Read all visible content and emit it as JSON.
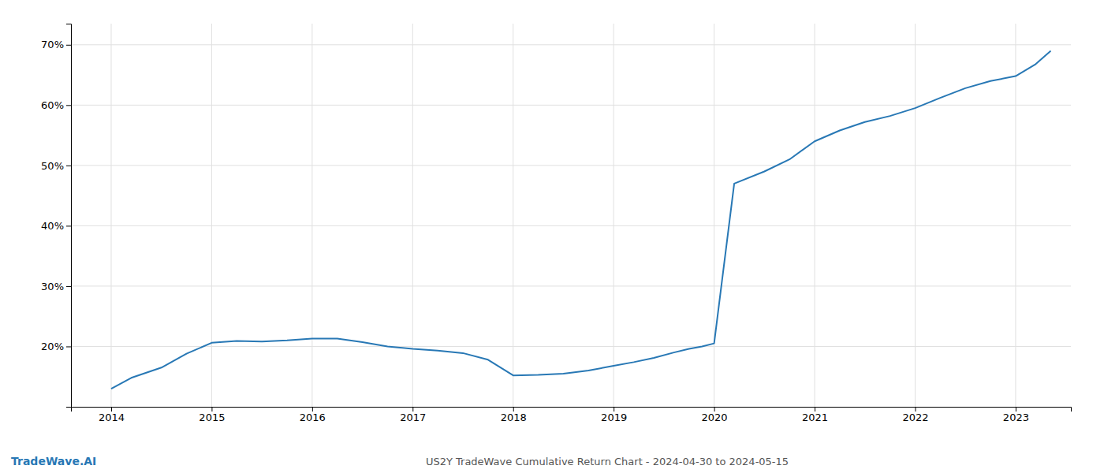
{
  "chart_data": {
    "type": "line",
    "title": "US2Y TradeWave Cumulative Return Chart - 2024-04-30 to 2024-05-15",
    "annotations": [
      "TradeWave.AI"
    ],
    "color": "#2878b5",
    "grid": true,
    "x": [
      2014.0,
      2014.2,
      2014.5,
      2014.75,
      2015.0,
      2015.25,
      2015.5,
      2015.75,
      2016.0,
      2016.25,
      2016.5,
      2016.75,
      2017.0,
      2017.25,
      2017.5,
      2017.75,
      2018.0,
      2018.25,
      2018.5,
      2018.75,
      2019.0,
      2019.2,
      2019.4,
      2019.6,
      2019.75,
      2019.88,
      2020.0,
      2020.2,
      2020.5,
      2020.75,
      2021.0,
      2021.25,
      2021.5,
      2021.75,
      2022.0,
      2022.25,
      2022.5,
      2022.75,
      2023.0,
      2023.2,
      2023.35
    ],
    "values": [
      0.13,
      0.148,
      0.165,
      0.188,
      0.206,
      0.209,
      0.208,
      0.21,
      0.213,
      0.213,
      0.207,
      0.2,
      0.196,
      0.193,
      0.189,
      0.178,
      0.152,
      0.153,
      0.155,
      0.16,
      0.168,
      0.174,
      0.181,
      0.19,
      0.196,
      0.2,
      0.205,
      0.47,
      0.49,
      0.51,
      0.54,
      0.558,
      0.572,
      0.582,
      0.595,
      0.612,
      0.628,
      0.64,
      0.648,
      0.668,
      0.69
    ],
    "xlim": [
      2013.6,
      2023.55
    ],
    "xticks": [
      2014,
      2015,
      2016,
      2017,
      2018,
      2019,
      2020,
      2021,
      2022,
      2023
    ],
    "ylim": [
      0.1,
      0.735
    ],
    "yticks": [
      {
        "value": 0.2,
        "label": "20%"
      },
      {
        "value": 0.3,
        "label": "30%"
      },
      {
        "value": 0.4,
        "label": "40%"
      },
      {
        "value": 0.5,
        "label": "50%"
      },
      {
        "value": 0.6,
        "label": "60%"
      },
      {
        "value": 0.7,
        "label": "70%"
      }
    ]
  }
}
